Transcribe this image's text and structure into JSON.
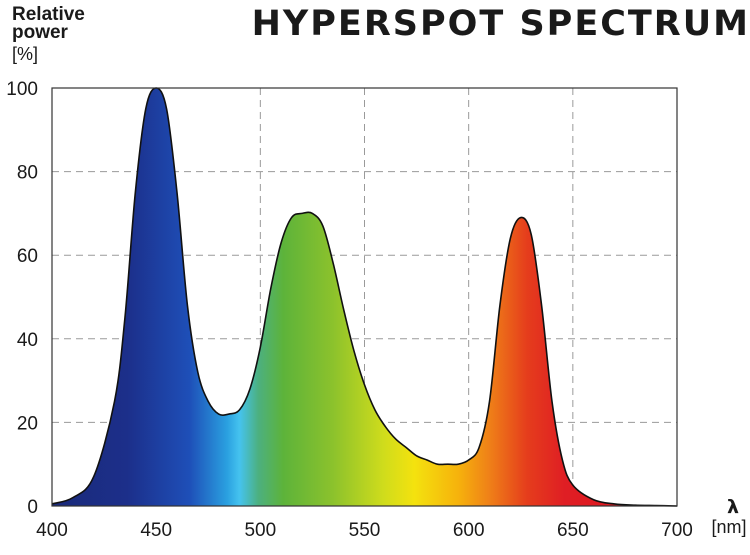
{
  "title": "HYPERSPOT SPECTRUM",
  "chart_data": {
    "type": "area",
    "title": "HYPERSPOT SPECTRUM",
    "ylabel_line1": "Relative",
    "ylabel_line2": "power",
    "yunit": "[%]",
    "xlabel": "λ",
    "xunit": "[nm]",
    "xlim": [
      400,
      700
    ],
    "ylim": [
      0,
      100
    ],
    "xticks": [
      400,
      450,
      500,
      550,
      600,
      650,
      700
    ],
    "yticks": [
      0,
      20,
      40,
      60,
      80,
      100
    ],
    "grid": true,
    "fill": "visible spectrum gradient",
    "series": [
      {
        "x": [
          400,
          410,
          420,
          430,
          435,
          440,
          445,
          450,
          455,
          460,
          465,
          470,
          475,
          480,
          485,
          490,
          495,
          500,
          505,
          510,
          515,
          520,
          525,
          530,
          535,
          540,
          545,
          550,
          555,
          560,
          565,
          570,
          575,
          580,
          585,
          590,
          595,
          600,
          605,
          610,
          615,
          620,
          625,
          630,
          635,
          640,
          645,
          650,
          660,
          670,
          680,
          690,
          700
        ],
        "values": [
          0.5,
          2,
          7,
          25,
          45,
          75,
          95,
          100,
          95,
          75,
          48,
          32,
          25,
          22,
          22,
          23,
          28,
          38,
          52,
          63,
          69,
          70,
          70,
          67,
          58,
          47,
          37,
          29,
          23,
          19,
          16,
          14,
          12,
          11,
          10,
          10,
          10,
          11,
          14,
          25,
          48,
          64,
          69,
          65,
          48,
          25,
          11,
          5,
          1.5,
          0.5,
          0.2,
          0.1,
          0
        ]
      }
    ]
  }
}
